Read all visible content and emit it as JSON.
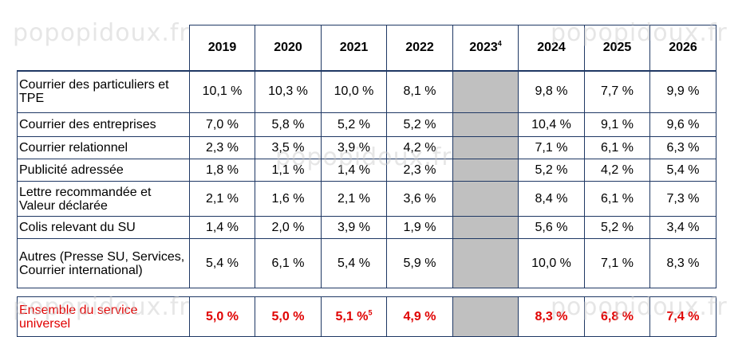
{
  "columns": [
    "2019",
    "2020",
    "2021",
    "2022",
    "2023",
    "2024",
    "2025",
    "2026"
  ],
  "column_2023_sup": "4",
  "rows": [
    {
      "label": "Courrier des particuliers et TPE",
      "values": [
        "10,1 %",
        "10,3 %",
        "10,0 %",
        "8,1 %",
        "",
        "9,8 %",
        "7,7 %",
        "9,9 %"
      ]
    },
    {
      "label": "Courrier des entreprises",
      "values": [
        "7,0 %",
        "5,8 %",
        "5,2 %",
        "5,2 %",
        "",
        "10,4 %",
        "9,1 %",
        "9,6 %"
      ]
    },
    {
      "label": "Courrier relationnel",
      "values": [
        "2,3 %",
        "3,5 %",
        "3,9 %",
        "4,2 %",
        "",
        "7,1 %",
        "6,1 %",
        "6,3 %"
      ]
    },
    {
      "label": "Publicité adressée",
      "values": [
        "1,8 %",
        "1,1 %",
        "1,4 %",
        "2,3 %",
        "",
        "5,2 %",
        "4,2 %",
        "5,4 %"
      ]
    },
    {
      "label": "Lettre recommandée et Valeur déclarée",
      "values": [
        "2,1 %",
        "1,6 %",
        "2,1 %",
        "3,6 %",
        "",
        "8,4 %",
        "6,1 %",
        "7,3 %"
      ]
    },
    {
      "label": "Colis relevant du SU",
      "values": [
        "1,4 %",
        "2,0 %",
        "3,9 %",
        "1,9 %",
        "",
        "5,6 %",
        "5,2 %",
        "3,4 %"
      ]
    },
    {
      "label": "Autres (Presse SU, Services, Courrier international)",
      "values": [
        "5,4 %",
        "6,1 %",
        "5,4 %",
        "5,9 %",
        "",
        "10,0 %",
        "7,1 %",
        "8,3 %"
      ]
    }
  ],
  "total": {
    "label": "Ensemble du service universel",
    "values": [
      "5,0 %",
      "5,0 %",
      "5,1 %",
      "4,9 %",
      "",
      "8,3 %",
      "6,8 %",
      "7,4 %"
    ],
    "value_2021_sup": "5"
  },
  "watermark": "popopidoux.fr",
  "colors": {
    "border": "#1f3864",
    "grey_cell": "#c0c0c0",
    "total_text": "#e00000"
  }
}
